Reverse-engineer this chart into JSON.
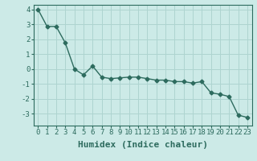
{
  "x": [
    0,
    1,
    2,
    3,
    4,
    5,
    6,
    7,
    8,
    9,
    10,
    11,
    12,
    13,
    14,
    15,
    16,
    17,
    18,
    19,
    20,
    21,
    22,
    23
  ],
  "y": [
    4.0,
    2.85,
    2.85,
    1.75,
    0.0,
    -0.4,
    0.2,
    -0.55,
    -0.65,
    -0.6,
    -0.55,
    -0.55,
    -0.65,
    -0.75,
    -0.75,
    -0.85,
    -0.85,
    -0.95,
    -0.85,
    -1.6,
    -1.7,
    -1.85,
    -3.1,
    -3.25
  ],
  "line_color": "#2d6b5e",
  "marker": "D",
  "marker_size": 2.5,
  "bg_color": "#cceae7",
  "grid_color": "#aed4d0",
  "axis_label_color": "#2d6b5e",
  "xlabel": "Humidex (Indice chaleur)",
  "xlabel_fontsize": 8,
  "ylim": [
    -3.8,
    4.3
  ],
  "yticks": [
    -3,
    -2,
    -1,
    0,
    1,
    2,
    3,
    4
  ],
  "xticks": [
    0,
    1,
    2,
    3,
    4,
    5,
    6,
    7,
    8,
    9,
    10,
    11,
    12,
    13,
    14,
    15,
    16,
    17,
    18,
    19,
    20,
    21,
    22,
    23
  ],
  "tick_fontsize": 6.5,
  "linewidth": 1.0
}
